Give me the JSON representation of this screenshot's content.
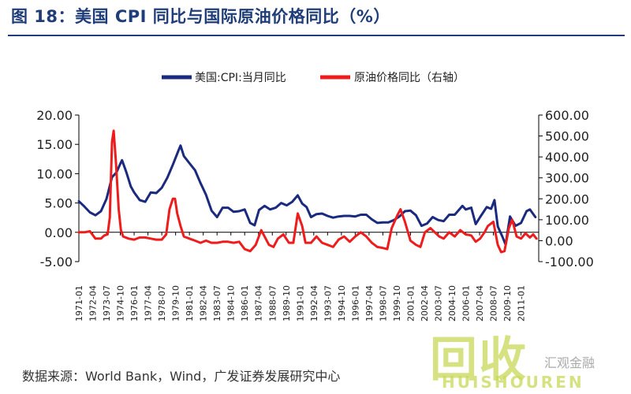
{
  "title": "图 18：美国 CPI 同比与国际原油价格同比（%）",
  "source": "数据来源：World Bank，Wind，广发证券发展研究中心",
  "watermark": {
    "main": "回收",
    "sub": "HUISHOUREN",
    "side": "汇观金融"
  },
  "colors": {
    "cpi": "#1a2a7e",
    "oil": "#ee1c1c",
    "title": "#1f3d78"
  },
  "chart_data": {
    "type": "line",
    "legend": {
      "position": "top",
      "entries": [
        "美国:CPI:当月同比",
        "原油价格同比（右轴）"
      ]
    },
    "y_left": {
      "ticks": [
        "20.00",
        "15.00",
        "10.00",
        "5.00",
        "0.00",
        "-5.00"
      ],
      "range": [
        -5,
        20
      ]
    },
    "y_right": {
      "ticks": [
        "600.00",
        "500.00",
        "400.00",
        "300.00",
        "200.00",
        "100.00",
        "0.00",
        "-100.00"
      ],
      "range": [
        -100,
        600
      ]
    },
    "x_range": [
      1971,
      2012.6
    ],
    "x_ticks": [
      "1971-01",
      "1972-04",
      "1973-07",
      "1974-10",
      "1976-01",
      "1977-04",
      "1978-07",
      "1979-10",
      "1981-01",
      "1982-04",
      "1983-07",
      "1984-10",
      "1986-01",
      "1987-04",
      "1988-07",
      "1989-10",
      "1991-01",
      "1992-04",
      "1993-07",
      "1994-10",
      "1996-01",
      "1997-04",
      "1998-07",
      "1999-10",
      "2001-01",
      "2002-04",
      "2003-07",
      "2004-10",
      "2006-01",
      "2007-04",
      "2008-07",
      "2009-10",
      "2011-01"
    ],
    "series": [
      {
        "name": "美国:CPI:当月同比",
        "axis": "left",
        "points": [
          [
            1971.0,
            5.3
          ],
          [
            1971.5,
            4.4
          ],
          [
            1972.0,
            3.4
          ],
          [
            1972.5,
            2.9
          ],
          [
            1973.0,
            3.6
          ],
          [
            1973.5,
            5.7
          ],
          [
            1974.0,
            9.4
          ],
          [
            1974.4,
            10.2
          ],
          [
            1974.7,
            11.5
          ],
          [
            1974.9,
            12.3
          ],
          [
            1975.3,
            10.2
          ],
          [
            1975.7,
            7.8
          ],
          [
            1976.0,
            6.8
          ],
          [
            1976.5,
            5.5
          ],
          [
            1977.0,
            5.2
          ],
          [
            1977.5,
            6.8
          ],
          [
            1978.0,
            6.7
          ],
          [
            1978.5,
            7.6
          ],
          [
            1979.0,
            9.3
          ],
          [
            1979.5,
            11.5
          ],
          [
            1980.0,
            13.9
          ],
          [
            1980.2,
            14.8
          ],
          [
            1980.5,
            13.0
          ],
          [
            1981.0,
            11.8
          ],
          [
            1981.5,
            10.6
          ],
          [
            1982.0,
            8.4
          ],
          [
            1982.5,
            6.4
          ],
          [
            1983.0,
            3.7
          ],
          [
            1983.5,
            2.6
          ],
          [
            1984.0,
            4.2
          ],
          [
            1984.5,
            4.2
          ],
          [
            1985.0,
            3.5
          ],
          [
            1985.5,
            3.6
          ],
          [
            1986.0,
            3.9
          ],
          [
            1986.5,
            1.6
          ],
          [
            1986.9,
            1.2
          ],
          [
            1987.3,
            3.8
          ],
          [
            1987.8,
            4.5
          ],
          [
            1988.3,
            3.9
          ],
          [
            1988.8,
            4.2
          ],
          [
            1989.3,
            5.0
          ],
          [
            1989.8,
            4.6
          ],
          [
            1990.3,
            5.2
          ],
          [
            1990.8,
            6.3
          ],
          [
            1991.2,
            4.9
          ],
          [
            1991.6,
            4.3
          ],
          [
            1992.0,
            2.6
          ],
          [
            1992.5,
            3.1
          ],
          [
            1993.0,
            3.2
          ],
          [
            1993.5,
            2.8
          ],
          [
            1994.0,
            2.5
          ],
          [
            1994.5,
            2.7
          ],
          [
            1995.0,
            2.8
          ],
          [
            1995.5,
            2.8
          ],
          [
            1996.0,
            2.7
          ],
          [
            1996.5,
            3.0
          ],
          [
            1997.0,
            3.0
          ],
          [
            1997.5,
            2.2
          ],
          [
            1998.0,
            1.6
          ],
          [
            1998.5,
            1.7
          ],
          [
            1999.0,
            1.7
          ],
          [
            1999.5,
            2.1
          ],
          [
            2000.0,
            2.7
          ],
          [
            2000.5,
            3.6
          ],
          [
            2001.0,
            3.7
          ],
          [
            2001.5,
            2.9
          ],
          [
            2002.0,
            1.1
          ],
          [
            2002.5,
            1.5
          ],
          [
            2003.0,
            2.6
          ],
          [
            2003.5,
            2.1
          ],
          [
            2004.0,
            1.9
          ],
          [
            2004.5,
            3.0
          ],
          [
            2005.0,
            3.0
          ],
          [
            2005.7,
            4.5
          ],
          [
            2006.0,
            3.9
          ],
          [
            2006.5,
            4.2
          ],
          [
            2006.9,
            1.4
          ],
          [
            2007.3,
            2.6
          ],
          [
            2007.9,
            4.3
          ],
          [
            2008.3,
            4.0
          ],
          [
            2008.6,
            5.5
          ],
          [
            2008.9,
            1.0
          ],
          [
            2009.3,
            -0.7
          ],
          [
            2009.6,
            -2.1
          ],
          [
            2010.0,
            2.7
          ],
          [
            2010.5,
            1.1
          ],
          [
            2011.0,
            1.6
          ],
          [
            2011.5,
            3.6
          ],
          [
            2011.8,
            3.9
          ],
          [
            2012.3,
            2.6
          ]
        ]
      },
      {
        "name": "原油价格同比（右轴）",
        "axis": "right",
        "points": [
          [
            1971.0,
            40
          ],
          [
            1971.5,
            40
          ],
          [
            1972.0,
            45
          ],
          [
            1972.5,
            10
          ],
          [
            1973.0,
            10
          ],
          [
            1973.3,
            25
          ],
          [
            1973.6,
            30
          ],
          [
            1973.8,
            110
          ],
          [
            1974.0,
            470
          ],
          [
            1974.15,
            525
          ],
          [
            1974.35,
            380
          ],
          [
            1974.6,
            150
          ],
          [
            1974.8,
            50
          ],
          [
            1975.0,
            20
          ],
          [
            1975.5,
            10
          ],
          [
            1976.0,
            5
          ],
          [
            1976.5,
            15
          ],
          [
            1977.0,
            15
          ],
          [
            1977.5,
            10
          ],
          [
            1978.0,
            5
          ],
          [
            1978.5,
            5
          ],
          [
            1978.9,
            30
          ],
          [
            1979.2,
            150
          ],
          [
            1979.5,
            200
          ],
          [
            1979.7,
            200
          ],
          [
            1979.9,
            130
          ],
          [
            1980.2,
            70
          ],
          [
            1980.5,
            20
          ],
          [
            1981.0,
            10
          ],
          [
            1981.5,
            0
          ],
          [
            1982.0,
            -10
          ],
          [
            1982.5,
            0
          ],
          [
            1983.0,
            -10
          ],
          [
            1983.5,
            -10
          ],
          [
            1984.0,
            -5
          ],
          [
            1984.5,
            -5
          ],
          [
            1985.0,
            -10
          ],
          [
            1985.5,
            -5
          ],
          [
            1986.0,
            -40
          ],
          [
            1986.5,
            -50
          ],
          [
            1987.0,
            -20
          ],
          [
            1987.5,
            50
          ],
          [
            1987.8,
            20
          ],
          [
            1988.2,
            -20
          ],
          [
            1988.6,
            -30
          ],
          [
            1989.0,
            10
          ],
          [
            1989.5,
            30
          ],
          [
            1990.0,
            -10
          ],
          [
            1990.4,
            -10
          ],
          [
            1990.8,
            130
          ],
          [
            1991.2,
            70
          ],
          [
            1991.5,
            -10
          ],
          [
            1992.0,
            -10
          ],
          [
            1992.5,
            20
          ],
          [
            1993.0,
            -10
          ],
          [
            1993.5,
            -20
          ],
          [
            1994.0,
            -30
          ],
          [
            1994.5,
            5
          ],
          [
            1995.0,
            20
          ],
          [
            1995.5,
            -5
          ],
          [
            1996.0,
            20
          ],
          [
            1996.5,
            40
          ],
          [
            1997.0,
            20
          ],
          [
            1997.5,
            -10
          ],
          [
            1998.0,
            -30
          ],
          [
            1998.5,
            -35
          ],
          [
            1998.9,
            -40
          ],
          [
            1999.3,
            60
          ],
          [
            1999.8,
            120
          ],
          [
            2000.1,
            150
          ],
          [
            2000.5,
            90
          ],
          [
            2001.0,
            0
          ],
          [
            2001.5,
            -20
          ],
          [
            2001.9,
            -30
          ],
          [
            2002.3,
            40
          ],
          [
            2002.8,
            60
          ],
          [
            2003.2,
            40
          ],
          [
            2003.6,
            20
          ],
          [
            2004.0,
            10
          ],
          [
            2004.5,
            40
          ],
          [
            2005.0,
            20
          ],
          [
            2005.5,
            50
          ],
          [
            2006.0,
            30
          ],
          [
            2006.5,
            25
          ],
          [
            2006.9,
            -5
          ],
          [
            2007.3,
            10
          ],
          [
            2007.7,
            40
          ],
          [
            2008.0,
            70
          ],
          [
            2008.5,
            90
          ],
          [
            2008.9,
            -20
          ],
          [
            2009.2,
            -55
          ],
          [
            2009.5,
            -50
          ],
          [
            2009.9,
            60
          ],
          [
            2010.2,
            100
          ],
          [
            2010.6,
            20
          ],
          [
            2011.0,
            10
          ],
          [
            2011.4,
            35
          ],
          [
            2011.8,
            15
          ],
          [
            2012.1,
            30
          ],
          [
            2012.4,
            10
          ]
        ]
      }
    ]
  }
}
